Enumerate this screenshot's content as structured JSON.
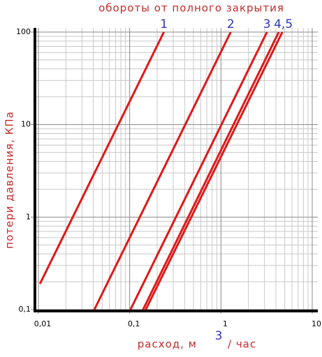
{
  "chart_data": {
    "type": "line",
    "title": "обороты от полного закрытия",
    "ylabel": "потери давления, КПа",
    "xlabel": {
      "text": "расход, м",
      "superscript": "3",
      "suffix": "/ час"
    },
    "log_x": true,
    "log_y": true,
    "grid": true,
    "xlim": [
      0.01,
      10
    ],
    "ylim": [
      0.1,
      100
    ],
    "xticks": [
      {
        "value": 0.01,
        "label": "0,01"
      },
      {
        "value": 0.1,
        "label": "0,1"
      },
      1,
      10
    ],
    "yticks": [
      {
        "value": 0.1,
        "label": "0,1"
      },
      1,
      10,
      100
    ],
    "line_labels": [
      "1",
      "2",
      "3",
      "4,5"
    ],
    "series": [
      {
        "color": "#e01818",
        "x": [
          0.0104,
          0.237
        ],
        "values": [
          0.19,
          100
        ]
      },
      {
        "color": "#e01818",
        "x": [
          0.041,
          1.28
        ],
        "values": [
          0.1,
          100
        ]
      },
      {
        "color": "#e01818",
        "x": [
          0.102,
          3.19
        ],
        "values": [
          0.1,
          100
        ]
      },
      {
        "color": "#e01818",
        "x": [
          0.14,
          4.3
        ],
        "values": [
          0.1,
          100
        ]
      },
      {
        "color": "#e01818",
        "x": [
          0.15,
          4.7
        ],
        "values": [
          0.1,
          100
        ]
      }
    ]
  }
}
